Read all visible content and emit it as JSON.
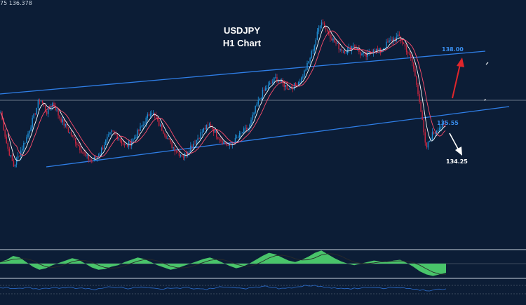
{
  "header": {
    "readout": "75  136.378"
  },
  "chart_data": {
    "type": "line",
    "title": "USDJPY",
    "subtitle": "H1 Chart",
    "symbol": "USDJPY",
    "timeframe": "H1",
    "annotations": [
      {
        "text": "138.00",
        "color": "#3a8ff0"
      },
      {
        "text": "135.55",
        "color": "#3a8ff0"
      },
      {
        "text": "134.25",
        "color": "#ffffff"
      }
    ],
    "channel": {
      "type": "ascending",
      "color": "#2f7fe8"
    },
    "scenarios": [
      {
        "direction": "up",
        "target": "138.00",
        "color": "#e0262b"
      },
      {
        "direction": "down",
        "target": "134.25",
        "color": "#ffffff"
      }
    ],
    "price_series": [
      136.3,
      135.6,
      135.2,
      135.5,
      135.8,
      136.2,
      136.6,
      136.3,
      136.5,
      136.2,
      136.0,
      135.8,
      135.6,
      135.4,
      135.3,
      135.45,
      135.7,
      135.9,
      135.8,
      135.6,
      135.7,
      135.9,
      136.1,
      136.35,
      136.1,
      135.9,
      135.65,
      135.5,
      135.4,
      135.6,
      135.75,
      135.95,
      136.05,
      135.85,
      135.7,
      135.6,
      135.75,
      135.9,
      136.0,
      136.4,
      136.7,
      136.85,
      137.0,
      136.9,
      136.8,
      136.85,
      137.0,
      137.3,
      137.7,
      138.2,
      137.95,
      137.75,
      137.6,
      137.55,
      137.7,
      137.5,
      137.45,
      137.6,
      137.55,
      137.7,
      137.8,
      137.85,
      137.6,
      137.3,
      136.6,
      135.55,
      135.85,
      136.0,
      136.05
    ],
    "oscillator_values": [
      0.02,
      0.05,
      0.1,
      0.08,
      0.02,
      -0.04,
      -0.08,
      -0.06,
      -0.02,
      0.01,
      0.04,
      0.07,
      0.05,
      0.0,
      -0.05,
      -0.08,
      -0.07,
      -0.04,
      -0.02,
      0.02,
      0.05,
      0.08,
      0.06,
      0.02,
      -0.02,
      -0.05,
      -0.08,
      -0.06,
      -0.03,
      0.0,
      0.03,
      0.06,
      0.08,
      0.05,
      0.01,
      -0.03,
      -0.06,
      -0.04,
      0.0,
      0.05,
      0.1,
      0.14,
      0.12,
      0.08,
      0.04,
      0.02,
      0.05,
      0.09,
      0.14,
      0.17,
      0.12,
      0.07,
      0.03,
      0.0,
      -0.02,
      0.0,
      0.02,
      0.04,
      0.03,
      0.02,
      0.04,
      0.05,
      0.01,
      -0.04,
      -0.1,
      -0.14,
      -0.16,
      -0.14,
      -0.12
    ],
    "rsi_values": [
      52,
      55,
      48,
      50,
      53,
      47,
      45,
      50,
      52,
      49,
      51,
      54,
      50,
      47,
      45,
      48,
      52,
      55,
      53,
      50,
      49,
      52,
      54,
      51,
      48,
      46,
      49,
      51,
      53,
      50,
      48,
      47,
      50,
      52,
      55,
      53,
      51,
      49,
      52,
      56,
      58,
      55,
      53,
      50,
      52,
      55,
      57,
      60,
      63,
      58,
      55,
      52,
      50,
      49,
      51,
      50,
      52,
      53,
      51,
      50,
      52,
      51,
      48,
      45,
      40,
      38,
      42,
      46,
      47
    ],
    "grid": false
  },
  "colors": {
    "background": "#0c1d36",
    "candle_bull": "#1f8fd6",
    "candle_bear": "#c8253f",
    "ma_fast": "#ffffff",
    "ma_slow": "#ff4d6d",
    "oscillator_fill": "#49c46a",
    "rsi_line": "#2c6fd0",
    "panel_divider": "#c9d3df"
  }
}
